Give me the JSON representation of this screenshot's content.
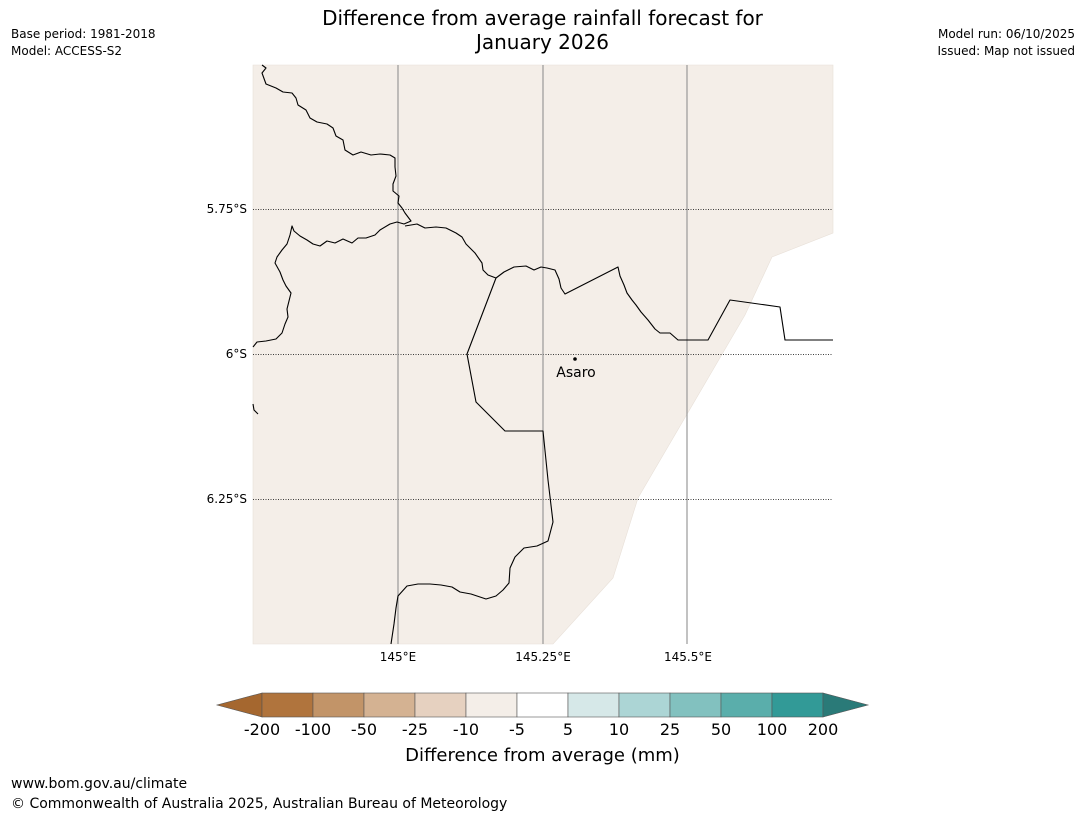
{
  "title_line1": "Difference from average rainfall forecast for",
  "title_line2": "January 2026",
  "meta_left": {
    "base_period": "Base period: 1981-2018",
    "model": "Model: ACCESS-S2"
  },
  "meta_right": {
    "model_run": "Model run: 06/10/2025",
    "issued": "Issued: Map not issued"
  },
  "map": {
    "lat_labels": [
      "5.75°S",
      "6°S",
      "6.25°S"
    ],
    "lon_labels": [
      "145°E",
      "145.25°E",
      "145.5°E"
    ],
    "place_name": "Asaro",
    "fill_color": "#f4eee8",
    "gridline_color": "#999999"
  },
  "colorbar": {
    "ticks": [
      "-200",
      "-100",
      "-50",
      "-25",
      "-10",
      "-5",
      "5",
      "10",
      "25",
      "50",
      "100",
      "200"
    ],
    "colors": [
      "#a5672f",
      "#b0743d",
      "#c29468",
      "#d4b292",
      "#e6d1c0",
      "#f4eee8",
      "#ffffff",
      "#d6e8e8",
      "#acd5d5",
      "#82c1bf",
      "#5aaeab",
      "#329a97",
      "#2a7a78"
    ],
    "label": "Difference from average (mm)"
  },
  "footer": {
    "url": "www.bom.gov.au/climate",
    "copyright": "© Commonwealth of Australia 2025, Australian Bureau of Meteorology"
  }
}
